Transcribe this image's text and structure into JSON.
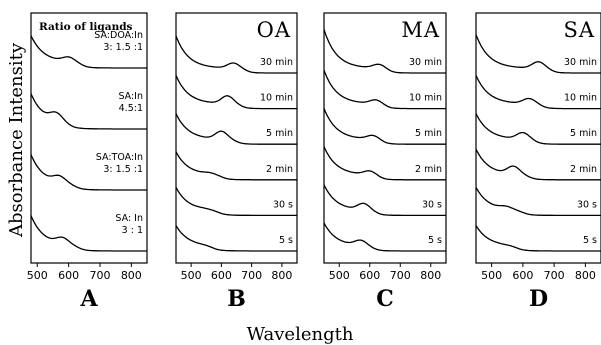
{
  "figure": {
    "ylabel": "Absorbance Intensity",
    "xlabel": "Wavelength"
  },
  "chart_data": [
    {
      "type": "line",
      "panel": "A",
      "title": "Ratio of ligands",
      "xlim": [
        480,
        850
      ],
      "xticks": [
        500,
        600,
        700,
        800
      ],
      "series": [
        {
          "label_lines": [
            "SA:DOA:In",
            "3: 1.5 :1"
          ],
          "onset": 640,
          "shoulder": 0.15,
          "peak": 600,
          "height": 0.9
        },
        {
          "label_lines": [
            "SA:In",
            "4.5:1"
          ],
          "onset": 600,
          "shoulder": 0.25,
          "peak": 560,
          "height": 1.0
        },
        {
          "label_lines": [
            "SA:TOA:In",
            "3: 1.5 :1"
          ],
          "onset": 620,
          "shoulder": 0.2,
          "peak": 570,
          "height": 1.0
        },
        {
          "label_lines": [
            "SA: In",
            "3 : 1"
          ],
          "onset": 630,
          "shoulder": 0.2,
          "peak": 580,
          "height": 1.0
        }
      ]
    },
    {
      "type": "line",
      "panel": "B",
      "title": "OA",
      "xlim": [
        450,
        850
      ],
      "xticks": [
        500,
        600,
        700,
        800
      ],
      "series": [
        {
          "label": "30 min",
          "onset": 680,
          "shoulder": 0.2,
          "peak": 640,
          "height": 1.25
        },
        {
          "label": "10 min",
          "onset": 665,
          "shoulder": 0.3,
          "peak": 620,
          "height": 1.1
        },
        {
          "label": "5 min",
          "onset": 650,
          "shoulder": 0.3,
          "peak": 600,
          "height": 1.0
        },
        {
          "label": "2 min",
          "onset": 600,
          "shoulder": 0.05,
          "peak": 560,
          "height": 0.9
        },
        {
          "label": "30 s",
          "onset": 590,
          "shoulder": 0.02,
          "peak": 540,
          "height": 0.9
        },
        {
          "label": "5 s",
          "onset": 570,
          "shoulder": 0.0,
          "peak": 520,
          "height": 0.8
        }
      ]
    },
    {
      "type": "line",
      "panel": "C",
      "title": "MA",
      "xlim": [
        450,
        850
      ],
      "xticks": [
        500,
        600,
        700,
        800
      ],
      "series": [
        {
          "label": "30 min",
          "onset": 660,
          "shoulder": 0.15,
          "peak": 630,
          "height": 1.5
        },
        {
          "label": "10 min",
          "onset": 650,
          "shoulder": 0.15,
          "peak": 620,
          "height": 1.3
        },
        {
          "label": "5 min",
          "onset": 640,
          "shoulder": 0.15,
          "peak": 610,
          "height": 1.2
        },
        {
          "label": "2 min",
          "onset": 630,
          "shoulder": 0.15,
          "peak": 600,
          "height": 1.1
        },
        {
          "label": "30 s",
          "onset": 620,
          "shoulder": 0.25,
          "peak": 580,
          "height": 1.0
        },
        {
          "label": "5 s",
          "onset": 610,
          "shoulder": 0.2,
          "peak": 570,
          "height": 0.9
        }
      ]
    },
    {
      "type": "line",
      "panel": "D",
      "title": "SA",
      "xlim": [
        450,
        850
      ],
      "xticks": [
        500,
        600,
        700,
        800
      ],
      "series": [
        {
          "label": "30 min",
          "onset": 690,
          "shoulder": 0.25,
          "peak": 650,
          "height": 1.3
        },
        {
          "label": "10 min",
          "onset": 660,
          "shoulder": 0.2,
          "peak": 620,
          "height": 1.1
        },
        {
          "label": "5 min",
          "onset": 640,
          "shoulder": 0.25,
          "peak": 600,
          "height": 1.0
        },
        {
          "label": "2 min",
          "onset": 620,
          "shoulder": 0.3,
          "peak": 570,
          "height": 1.0
        },
        {
          "label": "30 s",
          "onset": 600,
          "shoulder": 0.1,
          "peak": 545,
          "height": 0.9
        },
        {
          "label": "5 s",
          "onset": 580,
          "shoulder": 0.0,
          "peak": 530,
          "height": 0.8
        }
      ]
    }
  ],
  "panel_letters": [
    "A",
    "B",
    "C",
    "D"
  ]
}
